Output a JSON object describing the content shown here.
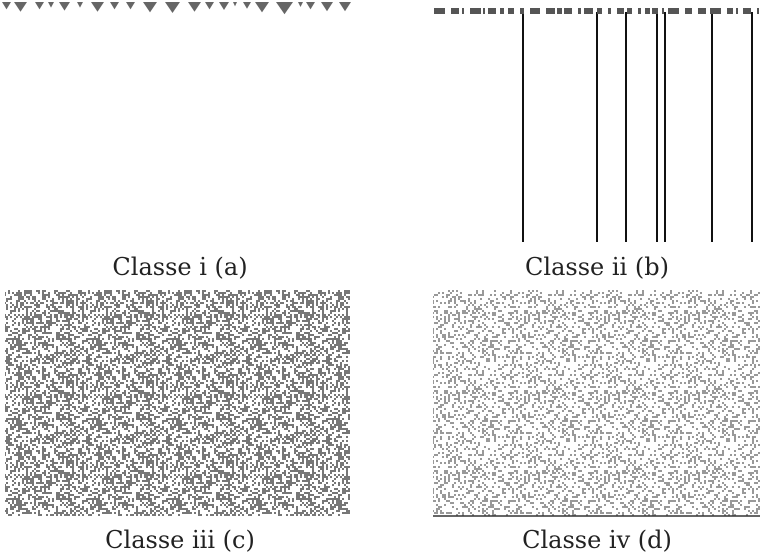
{
  "figure": {
    "panels": [
      {
        "caption": "Classe i (a)"
      },
      {
        "caption": "Classe ii (b)"
      },
      {
        "caption": "Classe iii (c)"
      },
      {
        "caption": "Classe iv (d)"
      }
    ]
  }
}
